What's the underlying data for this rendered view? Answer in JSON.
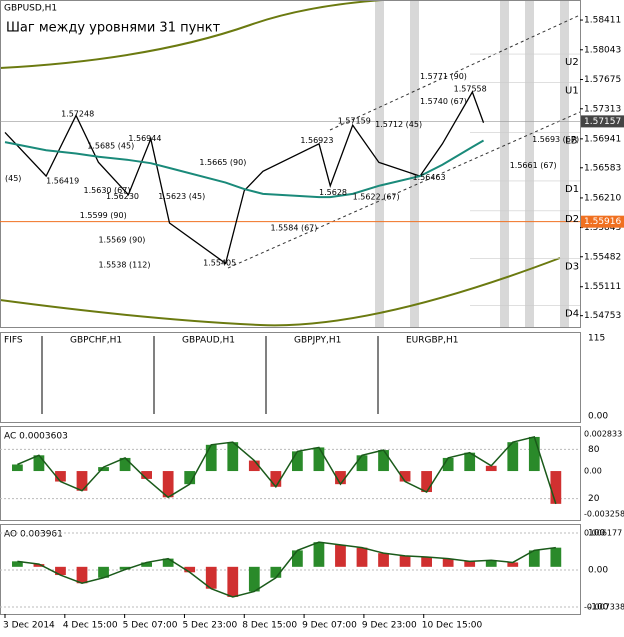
{
  "chart_data": {
    "type": "line",
    "symbol": "GBPUSD,H1",
    "title": "Шаг между уровнями 31 пункт",
    "x": [
      0,
      11,
      19,
      25,
      33,
      39,
      44,
      59,
      64,
      69,
      84,
      87,
      93,
      100,
      111,
      117,
      125,
      128
    ],
    "series": [
      {
        "color": "#000000",
        "values": [
          1.5702,
          1.5648,
          1.5723,
          1.5665,
          1.5625,
          1.5694,
          1.559,
          1.554,
          1.563,
          1.5654,
          1.5688,
          1.5636,
          1.5711,
          1.5665,
          1.5648,
          1.5688,
          1.5752,
          1.5714
        ]
      },
      {
        "color": "#1a8a7a",
        "values": [
          1.569,
          1.568,
          1.5676,
          1.5672,
          1.5668,
          1.5664,
          1.5658,
          1.564,
          1.5632,
          1.5626,
          1.5622,
          1.5622,
          1.5626,
          1.5636,
          1.5648,
          1.5662,
          1.5684,
          1.5692
        ]
      }
    ],
    "xlim": [
      0,
      153
    ],
    "ylim": [
      1.5465,
      1.5856
    ],
    "yticks": [
      1.58411,
      1.58043,
      1.57675,
      1.57313,
      1.56941,
      1.56583,
      {
        "value": 1.5621,
        "label": "1.56210"
      },
      1.55843,
      1.55482,
      1.55111,
      1.54753
    ],
    "xticks": [
      {
        "value": 0,
        "label": "3 Dec 2014"
      },
      {
        "value": 16,
        "label": "4 Dec 15:00"
      },
      {
        "value": 32,
        "label": "5 Dec 07:00"
      },
      {
        "value": 48,
        "label": "5 Dec 23:00"
      },
      {
        "value": 64,
        "label": "8 Dec 15:00"
      },
      {
        "value": 80,
        "label": "9 Dec 07:00"
      },
      {
        "value": 96,
        "label": "9 Dec 23:00"
      },
      {
        "value": 112,
        "label": "10 Dec 15:00"
      }
    ],
    "bid": {
      "value": 1.57157,
      "label": "1.57157"
    },
    "marker": {
      "value": 1.55916,
      "label": "1.55916",
      "color": "#f07020"
    },
    "levels": [
      {
        "label": "U2",
        "value": 1.5799
      },
      {
        "label": "U1",
        "value": 1.5764
      },
      {
        "label": "LB",
        "value": 1.5702
      },
      {
        "label": "D1",
        "value": 1.5642
      },
      {
        "label": "D2",
        "value": 1.5605
      },
      {
        "label": "D3",
        "value": 1.5546
      },
      {
        "label": "D4",
        "value": 1.5488
      }
    ],
    "annotations": [
      {
        "label": "1.57248",
        "value": 1.57248,
        "x": 15
      },
      {
        "label": "1.56419",
        "value": 1.56419,
        "x": 11
      },
      {
        "label": "1.5685 (45)",
        "value": 1.5685,
        "x": 22
      },
      {
        "label": "1.56944",
        "value": 1.56944,
        "x": 33
      },
      {
        "label": "1.5630 (67)",
        "value": 1.563,
        "x": 21
      },
      {
        "label": "1.5599 (90)",
        "value": 1.5599,
        "x": 20
      },
      {
        "label": "1.56230",
        "value": 1.5623,
        "x": 27
      },
      {
        "label": "1.5623 (45)",
        "value": 1.5623,
        "x": 41
      },
      {
        "label": "1.5665 (90)",
        "value": 1.5665,
        "x": 52
      },
      {
        "label": "1.5569 (90)",
        "value": 1.5569,
        "x": 25
      },
      {
        "label": "1.5538 (112)",
        "value": 1.5538,
        "x": 25
      },
      {
        "label": "1.55405",
        "value": 1.55405,
        "x": 53
      },
      {
        "label": "1.5584 (67)",
        "value": 1.5584,
        "x": 71
      },
      {
        "label": "1.56923",
        "value": 1.56923,
        "x": 79
      },
      {
        "label": "1.57159",
        "value": 1.57159,
        "x": 89
      },
      {
        "label": "1.5712 (45)",
        "value": 1.5712,
        "x": 99
      },
      {
        "label": "1.5622 (67)",
        "value": 1.5622,
        "x": 93
      },
      {
        "label": "1.5628",
        "value": 1.5628,
        "x": 84
      },
      {
        "label": "1.56463",
        "value": 1.56463,
        "x": 109
      },
      {
        "label": "1.5771 (90)",
        "value": 1.5771,
        "x": 111
      },
      {
        "label": "1.57558",
        "value": 1.57558,
        "x": 120
      },
      {
        "label": "1.5740 (67)",
        "value": 1.574,
        "x": 111
      },
      {
        "label": "1.5661 (67)",
        "value": 1.5661,
        "x": 135
      },
      {
        "label": "1.5693 (67)",
        "value": 1.5693,
        "x": 141
      },
      {
        "label": "(45)",
        "value": 1.5645,
        "x": 0
      }
    ],
    "fifs": {
      "label": "FIFS",
      "pairs": [
        "GBPCHF,H1",
        "GBPAUD,H1",
        "GBPJPY,H1",
        "EURGBP,H1"
      ],
      "ylim": [
        0,
        115
      ],
      "yticks": [
        115,
        {
          "value": 0,
          "label": "0.00"
        }
      ]
    },
    "ac": {
      "label": "AC 0.0003603",
      "ylim": [
        -0.00335,
        0.0029
      ],
      "yticks": [
        0.002833,
        {
          "value": 0,
          "label": "0.00"
        },
        -0.003258
      ],
      "y2lim": [
        0,
        100
      ],
      "y2ticks": [
        80,
        20
      ],
      "values": [
        0.0005,
        0.0012,
        -0.0008,
        -0.0015,
        0.0003,
        0.001,
        -0.0006,
        -0.002,
        -0.001,
        0.002,
        0.0022,
        0.0008,
        -0.0012,
        0.0015,
        0.0018,
        -0.001,
        0.0012,
        0.0016,
        -0.0008,
        -0.0016,
        0.001,
        0.0014,
        0.0004,
        0.0022,
        0.0026,
        -0.0025
      ]
    },
    "ao": {
      "label": "AO 0.003961",
      "ylim": [
        -0.007338,
        0.006177
      ],
      "yticks": [
        0.006177,
        -0.007338
      ],
      "y2lim": [
        -100,
        100
      ],
      "y2ticks": [
        100,
        {
          "value": 0,
          "label": "0.00"
        },
        -100
      ],
      "values": [
        0.001,
        0.0005,
        -0.0015,
        -0.003,
        -0.002,
        -0.0005,
        0.0008,
        0.0015,
        -0.001,
        -0.004,
        -0.0055,
        -0.0045,
        -0.002,
        0.003,
        0.0045,
        0.004,
        0.0035,
        0.0025,
        0.002,
        0.0018,
        0.0015,
        0.001,
        0.0012,
        0.0008,
        0.003,
        0.0035
      ]
    }
  }
}
